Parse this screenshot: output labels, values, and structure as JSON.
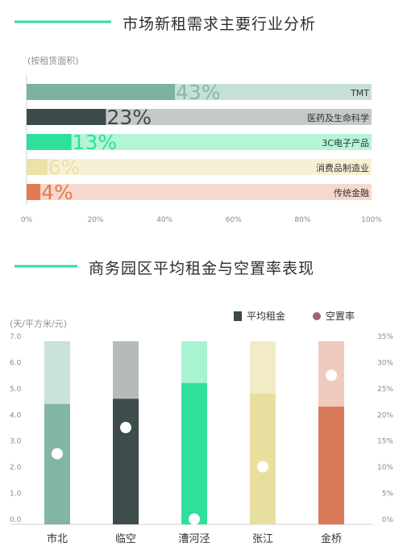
{
  "chart_data": [
    {
      "type": "bar",
      "orientation": "horizontal",
      "title": "市场新租需求主要行业分析",
      "unit_label": "(按租赁面积)",
      "categories": [
        "TMT",
        "医药及生命科学",
        "3C电子产品",
        "消费品制造业",
        "传统金融"
      ],
      "values": [
        43,
        23,
        13,
        6,
        4
      ],
      "value_labels": [
        "43%",
        "23%",
        "13%",
        "6%",
        "4%"
      ],
      "xlim": [
        0,
        100
      ],
      "xticks": [
        "0%",
        "20%",
        "40%",
        "60%",
        "80%",
        "100%"
      ],
      "colors": {
        "fill": [
          "#7fb19f",
          "#3c4a4a",
          "#2ee09a",
          "#eae2a6",
          "#e07b55"
        ],
        "track": [
          "#c6e0d7",
          "#c6c9c9",
          "#b4f4d7",
          "#f6f1d4",
          "#f6d8cc"
        ]
      }
    },
    {
      "type": "bar",
      "title": "商务园区平均租金与空置率表现",
      "ylabel": "(天/平方米/元)",
      "categories": [
        "市北",
        "临空",
        "漕河泾",
        "张江",
        "金桥"
      ],
      "series": [
        {
          "name": "平均租金",
          "values": [
            4.6,
            4.8,
            5.4,
            5.0,
            4.5
          ],
          "axis": "left"
        },
        {
          "name": "空置率",
          "values": [
            13.5,
            18.5,
            1.0,
            11.0,
            28.5
          ],
          "axis": "right",
          "marker": "dot"
        }
      ],
      "ylim": [
        0,
        7.0
      ],
      "y2lim": [
        0,
        35
      ],
      "yticks": [
        "0.0",
        "1.0",
        "2.0",
        "3.0",
        "4.0",
        "5.0",
        "6.0",
        "7.0"
      ],
      "y2ticks": [
        "0%",
        "5%",
        "10%",
        "15%",
        "20%",
        "25%",
        "30%",
        "35%"
      ],
      "legend_position": "top-right",
      "legend_colors": {
        "rent": "#3c4a4a",
        "vacancy": "#a0607a"
      },
      "colors": {
        "fill": [
          "#82b5a5",
          "#3f4c4c",
          "#2ee09a",
          "#e8df9f",
          "#d97a5a"
        ],
        "track": [
          "#c9e2da",
          "#b5bbbb",
          "#a8f3d2",
          "#f1ecc6",
          "#f0cbbd"
        ]
      }
    }
  ]
}
